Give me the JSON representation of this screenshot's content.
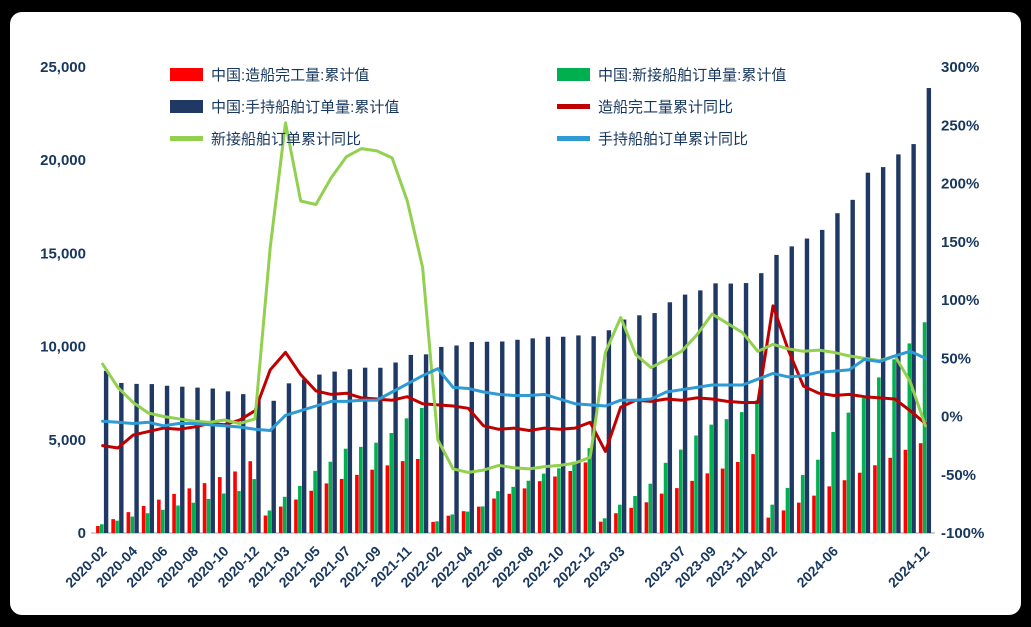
{
  "chart_data": {
    "type": "combo-bar-line",
    "title": "",
    "x": [
      "2020-02",
      "2020-03",
      "2020-04",
      "2020-05",
      "2020-06",
      "2020-07",
      "2020-08",
      "2020-09",
      "2020-10",
      "2020-11",
      "2020-12",
      "2021-02",
      "2021-03",
      "2021-04",
      "2021-05",
      "2021-06",
      "2021-07",
      "2021-08",
      "2021-09",
      "2021-10",
      "2021-11",
      "2021-12",
      "2022-02",
      "2022-03",
      "2022-04",
      "2022-05",
      "2022-06",
      "2022-07",
      "2022-08",
      "2022-09",
      "2022-10",
      "2022-11",
      "2022-12",
      "2023-02",
      "2023-03",
      "2023-04",
      "2023-05",
      "2023-06",
      "2023-07",
      "2023-08",
      "2023-09",
      "2023-10",
      "2023-11",
      "2023-12",
      "2024-02",
      "2024-03",
      "2024-04",
      "2024-05",
      "2024-06",
      "2024-07",
      "2024-08",
      "2024-09",
      "2024-10",
      "2024-11",
      "2024-12"
    ],
    "x_tick_indices": [
      0,
      2,
      4,
      6,
      8,
      10,
      12,
      14,
      16,
      18,
      20,
      22,
      24,
      26,
      28,
      30,
      32,
      34,
      38,
      40,
      42,
      44,
      48,
      54
    ],
    "x_tick_labels": [
      "2020-02",
      "2020-04",
      "2020-06",
      "2020-08",
      "2020-10",
      "2020-12",
      "2021-03",
      "2021-05",
      "2021-07",
      "2021-09",
      "2021-11",
      "2022-02",
      "2022-04",
      "2022-06",
      "2022-08",
      "2022-10",
      "2022-12",
      "2023-03",
      "2023-07",
      "2023-09",
      "2023-11",
      "2024-02",
      "2024-06",
      "2024-12"
    ],
    "left_axis": {
      "min": 0,
      "max": 25000,
      "step": 5000,
      "ticks": [
        "0",
        "5,000",
        "10,000",
        "15,000",
        "20,000",
        "25,000"
      ]
    },
    "right_axis": {
      "min": -100,
      "max": 300,
      "step": 50,
      "ticks": [
        "-100%",
        "-50%",
        "0%",
        "50%",
        "100%",
        "150%",
        "200%",
        "250%",
        "300%"
      ]
    },
    "grid": "off",
    "legend_position": "top",
    "series": [
      {
        "name": "中国:造船完工量:累计值",
        "type": "bar",
        "axis": "left",
        "color": "#FF0000",
        "values": [
          375,
          743,
          1120,
          1453,
          1790,
          2096,
          2396,
          2676,
          3001,
          3302,
          3853,
          936,
          1418,
          1795,
          2265,
          2660,
          2901,
          3120,
          3398,
          3628,
          3855,
          3970,
          595,
          928,
          1171,
          1413,
          1850,
          2103,
          2394,
          2780,
          3031,
          3328,
          3786,
          609,
          1061,
          1350,
          1647,
          2113,
          2409,
          2798,
          3198,
          3456,
          3809,
          4232,
          826,
          1211,
          1629,
          2006,
          2502,
          2831,
          3235,
          3634,
          4032,
          4465,
          4818
        ]
      },
      {
        "name": "中国:新接船舶订单量:累计值",
        "type": "bar",
        "axis": "left",
        "color": "#00B050",
        "values": [
          468,
          662,
          882,
          1061,
          1247,
          1476,
          1625,
          1830,
          2119,
          2252,
          2893,
          1208,
          1942,
          2527,
          3334,
          3824,
          4522,
          4622,
          4845,
          5365,
          6151,
          6707,
          628,
          994,
          1148,
          1428,
          2246,
          2477,
          2805,
          3185,
          3470,
          3826,
          4552,
          787,
          1518,
          1985,
          2645,
          3767,
          4476,
          5231,
          5812,
          6106,
          6485,
          7120,
          1520,
          2414,
          3108,
          3932,
          5422,
          6458,
          7239,
          8348,
          9320,
          10170,
          11305
        ]
      },
      {
        "name": "中国:手持船舶订单量:累计值",
        "type": "bar",
        "axis": "left",
        "color": "#1F3864",
        "values": [
          8700,
          8050,
          8000,
          7990,
          7900,
          7850,
          7800,
          7750,
          7600,
          7450,
          7111,
          7094,
          8029,
          8239,
          8499,
          8660,
          8786,
          8868,
          8865,
          9147,
          9554,
          9584,
          9983,
          10059,
          10247,
          10261,
          10274,
          10366,
          10441,
          10530,
          10529,
          10599,
          10557,
          10876,
          11452,
          11678,
          11799,
          12377,
          12790,
          13015,
          13393,
          13382,
          13409,
          13939,
          14919,
          15377,
          15797,
          16262,
          17155,
          17873,
          19330,
          19630,
          20313,
          20865,
          23872
        ]
      },
      {
        "name": "造船完工量累计同比",
        "type": "line",
        "axis": "right",
        "color": "#C00000",
        "values": [
          -25,
          -27,
          -16,
          -13,
          -10,
          -11,
          -9,
          -6,
          -7,
          -3,
          5,
          40,
          55,
          36,
          22,
          19,
          20,
          16,
          15,
          14,
          17,
          11,
          10,
          9,
          7,
          -8,
          -11,
          -10,
          -12,
          -10,
          -11,
          -10,
          -5,
          -30,
          8,
          14,
          13,
          15,
          14,
          16,
          15,
          13,
          12,
          12,
          95,
          57,
          26,
          20,
          18,
          19,
          17,
          16,
          15,
          5,
          -6
        ]
      },
      {
        "name": "新接船舶订单累计同比",
        "type": "line",
        "axis": "right",
        "color": "#92D050",
        "values": [
          45,
          25,
          12,
          3,
          0,
          -2,
          -4,
          -5,
          -3,
          -6,
          -2,
          145,
          252,
          185,
          182,
          205,
          223,
          230,
          228,
          222,
          185,
          128,
          -20,
          -45,
          -48,
          -46,
          -42,
          -44,
          -45,
          -43,
          -42,
          -40,
          -35,
          55,
          85,
          53,
          42,
          49,
          56,
          70,
          88,
          80,
          72,
          56,
          62,
          58,
          56,
          57,
          55,
          52,
          50,
          48,
          52,
          30,
          -8
        ]
      },
      {
        "name": "手持船舶订单累计同比",
        "type": "line",
        "axis": "right",
        "color": "#2E9BD5",
        "values": [
          -4,
          -5,
          -6,
          -5,
          -8,
          -6,
          -6,
          -7,
          -8,
          -9,
          -11,
          -12,
          1,
          5,
          9,
          13,
          13,
          14,
          14,
          21,
          28,
          35,
          41,
          25,
          24,
          21,
          19,
          18,
          18,
          19,
          15,
          11,
          10,
          9,
          14,
          14,
          15,
          21,
          23,
          25,
          27,
          27,
          27,
          32,
          37,
          34,
          35,
          38,
          39,
          40,
          49,
          47,
          52,
          56,
          50
        ]
      }
    ]
  }
}
